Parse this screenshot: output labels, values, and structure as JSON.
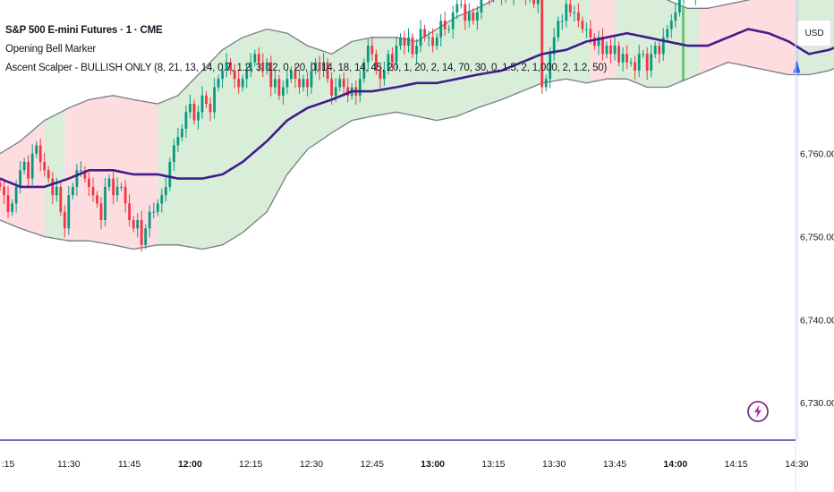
{
  "chart_data": {
    "type": "candlestick",
    "symbol": "S&P 500 E-mini Futures · 1 · CME",
    "indicators": [
      "Opening Bell Marker",
      "Ascent Scalper - BULLISH ONLY (8, 21, 13, 14, 0.7, 1.2, 3, 12, 0, 20, 0, 14, 18, 14, 45, 20, 1, 20, 2, 14, 70, 30, 0, 1.5, 2, 1,000, 2, 1.2, 50)"
    ],
    "currency": "USD",
    "y_ticks": [
      "6,760.00",
      "6,750.00",
      "6,740.00",
      "6,730.00"
    ],
    "x_ticks": [
      {
        "label": ":15",
        "bold": false
      },
      {
        "label": "11:30",
        "bold": false
      },
      {
        "label": "11:45",
        "bold": false
      },
      {
        "label": "12:00",
        "bold": true
      },
      {
        "label": "12:15",
        "bold": false
      },
      {
        "label": "12:30",
        "bold": false
      },
      {
        "label": "12:45",
        "bold": false
      },
      {
        "label": "13:00",
        "bold": true
      },
      {
        "label": "13:15",
        "bold": false
      },
      {
        "label": "13:30",
        "bold": false
      },
      {
        "label": "13:45",
        "bold": false
      },
      {
        "label": "14:00",
        "bold": true
      },
      {
        "label": "14:15",
        "bold": false
      },
      {
        "label": "14:30",
        "bold": false
      }
    ],
    "ylim": [
      6725.5,
      6778.5
    ],
    "start_minute": 433,
    "band_nodes": {
      "minutes": [
        433,
        438,
        444,
        450,
        455,
        461,
        466,
        472,
        477,
        483,
        488,
        493,
        499,
        504,
        509,
        515,
        520,
        525,
        531,
        536,
        541,
        546,
        551,
        557,
        562,
        567,
        573,
        578,
        583,
        588,
        593,
        598,
        603,
        608,
        613,
        618,
        623,
        628,
        633,
        638,
        643,
        648,
        653
      ],
      "upper": [
        6760,
        6761.5,
        6764,
        6765.5,
        6766.5,
        6767,
        6766.5,
        6766,
        6767,
        6770,
        6772.5,
        6774,
        6775,
        6774.5,
        6773,
        6772,
        6773.5,
        6774,
        6774,
        6773.5,
        6775,
        6776.5,
        6777.5,
        6779,
        6779.5,
        6779.5,
        6779,
        6780,
        6780.5,
        6780,
        6779.5,
        6778.5,
        6777.5,
        6777.5,
        6778,
        6778.5,
        6779,
        6779.5,
        6780,
        6780,
        6780,
        6780,
        6780
      ],
      "lower": [
        6752,
        6751,
        6750,
        6749.5,
        6749.5,
        6749,
        6748.5,
        6749,
        6749,
        6748.5,
        6749,
        6750.5,
        6753,
        6757.5,
        6760.5,
        6762.5,
        6764,
        6764.5,
        6765,
        6764.5,
        6764,
        6764.5,
        6765.5,
        6766.5,
        6767.5,
        6768.5,
        6769,
        6768.5,
        6769,
        6769,
        6768,
        6768,
        6769,
        6770,
        6771,
        6770.5,
        6770,
        6769.5,
        6769.5,
        6770,
        6771,
        6772.5,
        6774
      ],
      "ma": [
        6757,
        6756,
        6756,
        6757,
        6758,
        6758,
        6757.5,
        6757.5,
        6757,
        6757,
        6757.5,
        6759,
        6761.5,
        6764,
        6765.5,
        6766.5,
        6767.5,
        6767.5,
        6768,
        6768.5,
        6768.5,
        6769,
        6769.5,
        6770,
        6771,
        6772,
        6772.5,
        6773.5,
        6774,
        6774.5,
        6774,
        6773.5,
        6773,
        6773,
        6774,
        6775,
        6774.5,
        6773.5,
        6772,
        6772.5,
        6773.5,
        6775.5,
        6777
      ]
    },
    "regimes": [
      {
        "from": 433,
        "to": 444,
        "color": "red"
      },
      {
        "from": 444,
        "to": 449,
        "color": "green"
      },
      {
        "from": 449,
        "to": 472,
        "color": "red"
      },
      {
        "from": 472,
        "to": 579,
        "color": "green"
      },
      {
        "from": 579,
        "to": 585,
        "color": "red"
      },
      {
        "from": 585,
        "to": 606,
        "color": "green"
      },
      {
        "from": 606,
        "to": 630,
        "color": "red"
      },
      {
        "from": 630,
        "to": 651,
        "color": "green"
      }
    ],
    "closes": [
      6756,
      6755,
      6753,
      6754,
      6756,
      6758,
      6759,
      6757,
      6760,
      6761,
      6759,
      6758,
      6757,
      6755,
      6756,
      6753,
      6751,
      6755,
      6756,
      6758,
      6758,
      6757,
      6756,
      6755,
      6754,
      6752,
      6756,
      6757,
      6755,
      6756,
      6756,
      6754,
      6752,
      6751,
      6752,
      6749,
      6751,
      6753,
      6753,
      6754,
      6755,
      6756,
      6759,
      6761,
      6762,
      6763,
      6765,
      6766,
      6764,
      6765,
      6767,
      6766,
      6765,
      6768,
      6769,
      6770,
      6771,
      6770,
      6769,
      6768,
      6769,
      6770,
      6771,
      6772,
      6771,
      6770,
      6771,
      6768,
      6769,
      6767,
      6768,
      6769,
      6770,
      6769,
      6768,
      6769,
      6768,
      6770,
      6771,
      6770,
      6771,
      6769,
      6767,
      6768,
      6769,
      6768,
      6767,
      6768,
      6767,
      6769,
      6771,
      6773,
      6772,
      6770,
      6769,
      6770,
      6772,
      6771,
      6773,
      6774,
      6773,
      6774,
      6772,
      6773,
      6775,
      6774,
      6774,
      6773,
      6774,
      6776,
      6775,
      6775,
      6777,
      6778,
      6778,
      6776,
      6777,
      6776,
      6777,
      6779,
      6780,
      6779,
      6780,
      6779,
      6780,
      6779,
      6779,
      6780,
      6781,
      6780,
      6779,
      6781,
      6778,
      6780,
      6768,
      6769,
      6772,
      6774,
      6776,
      6776,
      6778,
      6777,
      6777,
      6776,
      6775,
      6775,
      6774,
      6773,
      6774,
      6772,
      6773,
      6772,
      6773,
      6771,
      6772,
      6771,
      6771,
      6770,
      6772,
      6772,
      6770,
      6772,
      6773,
      6772,
      6774,
      6775,
      6776,
      6777,
      6779,
      6780,
      6781,
      6779,
      6780
    ],
    "opening_bell_minute": 630,
    "green_bars": [
      602,
      645,
      646,
      647,
      648,
      649,
      650
    ]
  },
  "colors": {
    "up": "#089981",
    "down": "#f23645",
    "ma": "#3f1d8a",
    "band_edge": "#787b86",
    "fill_green": "#d9eed9",
    "fill_red": "#fddde0",
    "axis": "#4a3a9a"
  }
}
